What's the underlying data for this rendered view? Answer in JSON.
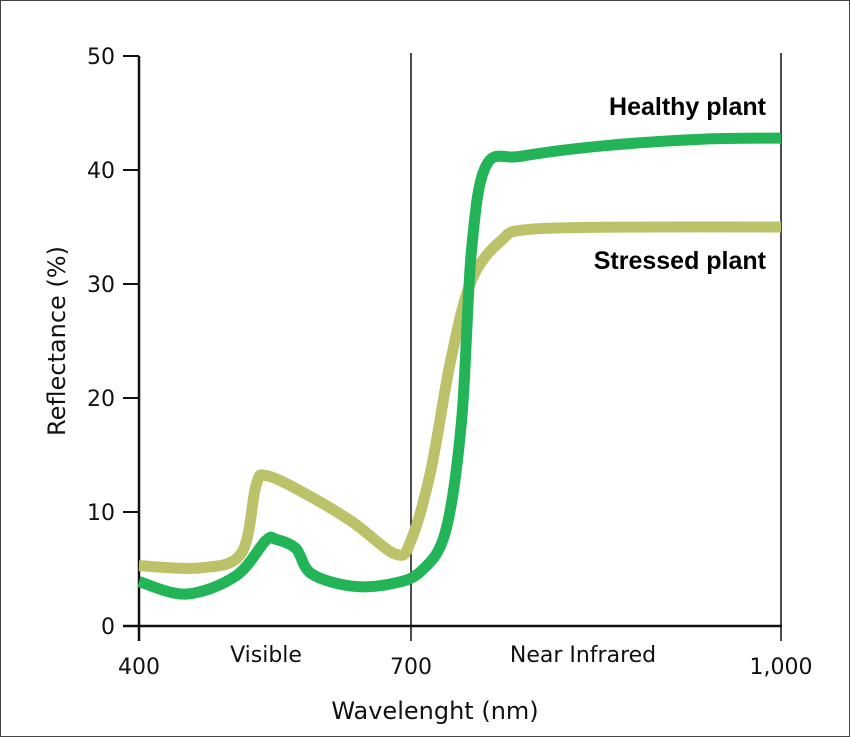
{
  "chart_data": {
    "type": "line",
    "title": "",
    "xlabel": "Wavelenght (nm)",
    "ylabel": "Reflectance (%)",
    "xlim": [
      400,
      1000
    ],
    "ylim": [
      0,
      50
    ],
    "x_ticks": [
      "400",
      "700",
      "1,000"
    ],
    "y_ticks": [
      "0",
      "10",
      "20",
      "30",
      "40",
      "50"
    ],
    "region_labels": [
      "Visible",
      "Near Infrared"
    ],
    "grid": false,
    "series": [
      {
        "name": "Healthy plant",
        "color": "#22b457",
        "points": [
          [
            400,
            3.9
          ],
          [
            452,
            2.8
          ],
          [
            507,
            4.4
          ],
          [
            540,
            7.5
          ],
          [
            551,
            7.6
          ],
          [
            573,
            6.8
          ],
          [
            590,
            4.6
          ],
          [
            634,
            3.5
          ],
          [
            678,
            3.7
          ],
          [
            708,
            4.8
          ],
          [
            728,
            8.3
          ],
          [
            741,
            18.0
          ],
          [
            749,
            32.9
          ],
          [
            761,
            40.4
          ],
          [
            789,
            41.2
          ],
          [
            854,
            42.1
          ],
          [
            935,
            42.7
          ],
          [
            1000,
            42.8
          ]
        ]
      },
      {
        "name": "Stressed plant",
        "color": "#bcc26a",
        "points": [
          [
            400,
            5.3
          ],
          [
            468,
            5.1
          ],
          [
            513,
            6.4
          ],
          [
            529,
            12.3
          ],
          [
            540,
            13.2
          ],
          [
            579,
            11.8
          ],
          [
            634,
            9.2
          ],
          [
            683,
            6.3
          ],
          [
            700,
            7.5
          ],
          [
            716,
            13.6
          ],
          [
            732,
            23.2
          ],
          [
            749,
            30.3
          ],
          [
            773,
            33.8
          ],
          [
            797,
            34.8
          ],
          [
            895,
            35.0
          ],
          [
            1000,
            35.0
          ]
        ]
      }
    ]
  }
}
